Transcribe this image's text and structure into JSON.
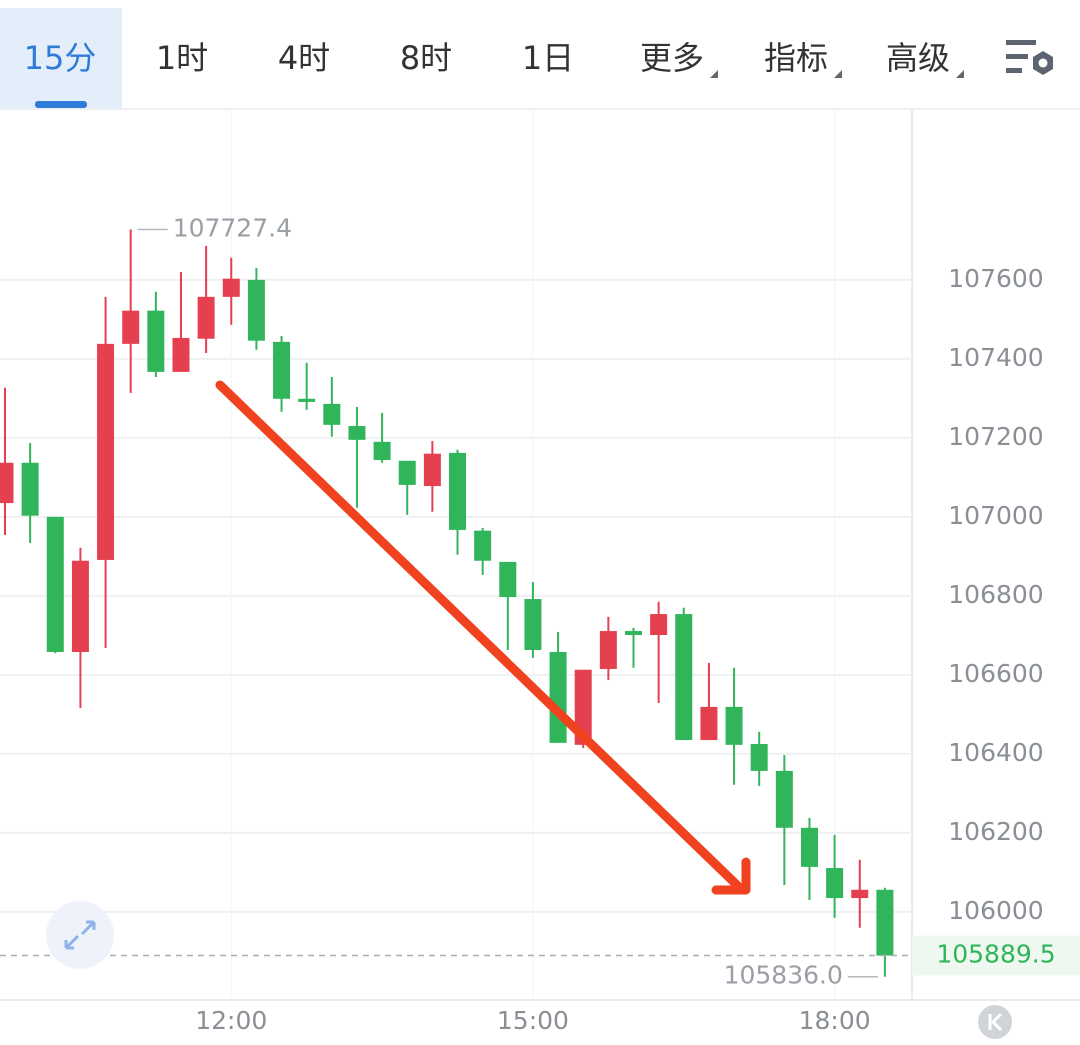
{
  "tabs": [
    "15分",
    "1时",
    "4时",
    "8时",
    "1日",
    "更多",
    "指标",
    "高级"
  ],
  "active_tab": 0,
  "chart_data": {
    "type": "candlestick",
    "up_color": "#e5404f",
    "down_color": "#30b55a",
    "categories": [
      null,
      null,
      null,
      null,
      null,
      null,
      null,
      null,
      null,
      "12:00",
      null,
      null,
      null,
      null,
      null,
      null,
      null,
      null,
      null,
      null,
      null,
      "15:00",
      null,
      null,
      null,
      null,
      null,
      null,
      null,
      null,
      null,
      null,
      null,
      "18:00",
      null,
      null
    ],
    "open": [
      107035,
      107137,
      107000,
      106658,
      106891,
      107438,
      107522,
      107367,
      107451,
      107557,
      107600,
      107443,
      107299,
      107286,
      107230,
      107190,
      107142,
      107078,
      107162,
      106965,
      106886,
      106792,
      106658,
      106423,
      106615,
      106711,
      106701,
      106754,
      106435,
      106519,
      106425,
      106357,
      106213,
      106111,
      106035,
      106056
    ],
    "high": [
      107327,
      107187,
      107000,
      106922,
      107557,
      107727.4,
      107570,
      107620,
      107686,
      107656,
      107630,
      107458,
      107390,
      107354,
      107278,
      107263,
      107142,
      107192,
      107170,
      106972,
      106886,
      106835,
      106709,
      106613,
      106747,
      106719,
      106785,
      106770,
      106630,
      106618,
      106456,
      106397,
      106238,
      106195,
      106132,
      106061
    ],
    "low": [
      106954,
      106934,
      106655,
      106516,
      106668,
      107314,
      107354,
      107367,
      107415,
      107486,
      107423,
      107266,
      107271,
      107203,
      107023,
      107137,
      107005,
      107013,
      106904,
      106853,
      106663,
      106643,
      106428,
      106415,
      106587,
      106618,
      106529,
      106435,
      106435,
      106322,
      106319,
      106068,
      106030,
      105985,
      105960,
      105836.0
    ],
    "close": [
      107137,
      107003,
      106658,
      106889,
      107438,
      107522,
      107367,
      107453,
      107557,
      107603,
      107446,
      107299,
      107291,
      107233,
      107195,
      107144,
      107081,
      107160,
      106967,
      106889,
      106797,
      106663,
      106428,
      106613,
      106711,
      106701,
      106754,
      106435,
      106519,
      106423,
      106357,
      106213,
      106114,
      106035,
      106056,
      105889.5
    ],
    "ylim": [
      105777,
      108030
    ],
    "yticks": [
      106000,
      106200,
      106400,
      106600,
      106800,
      107000,
      107200,
      107400,
      107600
    ],
    "grid": true,
    "annotations": [
      {
        "value": 107727.4,
        "label": "107727.4"
      },
      {
        "value": 105836.0,
        "label": "105836.0"
      }
    ],
    "last_price": {
      "value": 105889.5,
      "label": "105889.5"
    }
  }
}
